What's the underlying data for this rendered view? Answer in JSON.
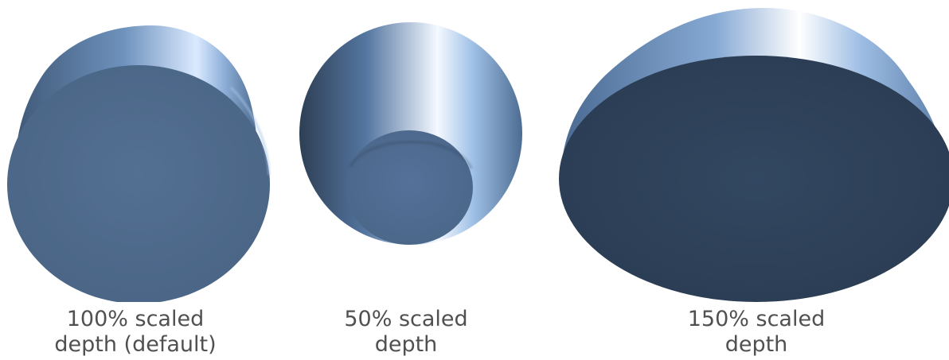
{
  "figures": [
    {
      "id": "default",
      "caption_lines": [
        "100% scaled",
        "depth (default)"
      ],
      "depth_scale_percent": 100
    },
    {
      "id": "half",
      "caption_lines": [
        "50% scaled",
        "depth"
      ],
      "depth_scale_percent": 50
    },
    {
      "id": "onehalf",
      "caption_lines": [
        "150% scaled",
        "depth"
      ],
      "depth_scale_percent": 150
    }
  ],
  "colors": {
    "face_light": "#4f6b8d",
    "face_dark": "#2f4157",
    "side_highlight": "#ffffff",
    "side_mid": "#8fb1d9",
    "side_dark": "#2e3f55",
    "caption_text": "#505050"
  }
}
